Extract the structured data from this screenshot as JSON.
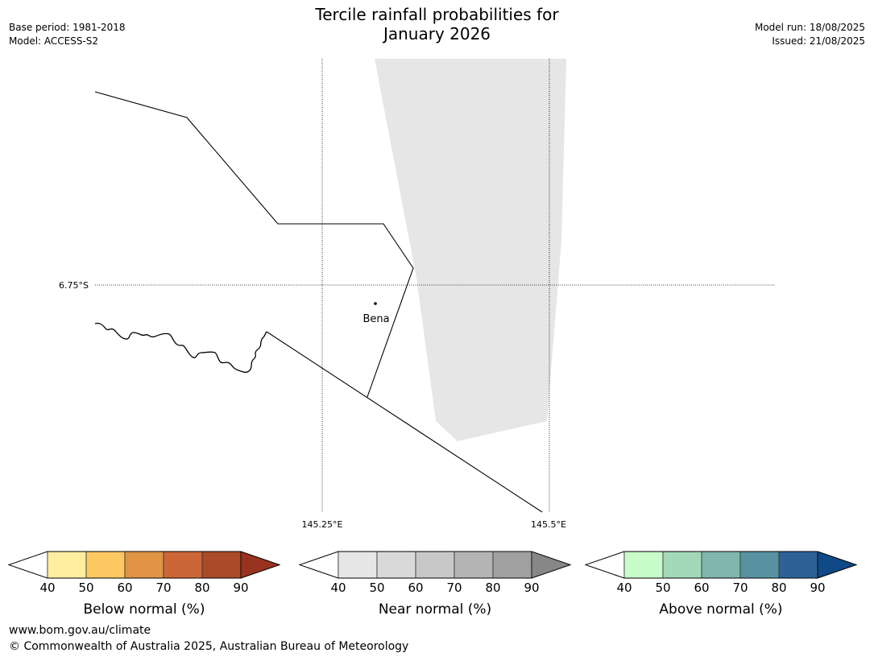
{
  "header": {
    "title_line1": "Tercile rainfall probabilities for",
    "title_line2": "January 2026",
    "base_period": "Base period: 1981-2018",
    "model": "Model: ACCESS-S2",
    "model_run": "Model run: 18/08/2025",
    "issued": "Issued: 21/08/2025"
  },
  "map": {
    "lat_label": "6.75°S",
    "lon_labels": [
      "145.25°E",
      "145.5°E"
    ],
    "place_label": "Bena",
    "near_normal_region_color": "#e6e6e6"
  },
  "colorbars": [
    {
      "title": "Below normal (%)",
      "ticks": [
        "40",
        "50",
        "60",
        "70",
        "80",
        "90"
      ],
      "colors": [
        "#ffffff",
        "#ffeda0",
        "#fec862",
        "#e09444",
        "#cc6637",
        "#aa4a27",
        "#983320"
      ]
    },
    {
      "title": "Near normal (%)",
      "ticks": [
        "40",
        "50",
        "60",
        "70",
        "80",
        "90"
      ],
      "colors": [
        "#ffffff",
        "#e6e6e6",
        "#d9d9d9",
        "#c8c8c8",
        "#b4b4b4",
        "#a0a0a0",
        "#878787"
      ]
    },
    {
      "title": "Above normal (%)",
      "ticks": [
        "40",
        "50",
        "60",
        "70",
        "80",
        "90"
      ],
      "colors": [
        "#ffffff",
        "#c8fcc8",
        "#a3d9b9",
        "#7fb6ae",
        "#5892a0",
        "#2e6196",
        "#104a86"
      ]
    }
  ],
  "footer": {
    "url": "www.bom.gov.au/climate",
    "copyright": "© Commonwealth of Australia 2025, Australian Bureau of Meteorology"
  }
}
